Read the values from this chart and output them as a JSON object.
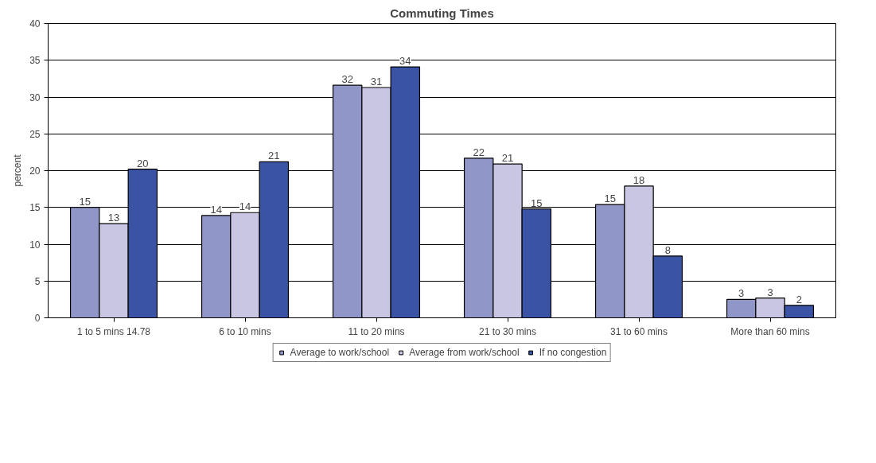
{
  "chart_data": {
    "type": "bar",
    "title": "Commuting Times",
    "ylabel": "percent",
    "categories": [
      "1 to 5 mins 14.78",
      "6 to 10 mins",
      "11 to 20 mins",
      "21 to 30 mins",
      "31 to 60 mins",
      "More than 60 mins"
    ],
    "series": [
      {
        "name": "Average to work/school",
        "color": "#9096c8",
        "values": [
          15,
          13.9,
          31.6,
          21.7,
          15.4,
          2.5
        ],
        "value_labels": [
          "15",
          "14",
          "32",
          "22",
          "15",
          "3"
        ]
      },
      {
        "name": "Average from work/school",
        "color": "#c8c6e2",
        "values": [
          12.8,
          14.3,
          31.3,
          20.9,
          17.9,
          2.7
        ],
        "value_labels": [
          "13",
          "14",
          "31",
          "21",
          "18",
          "3"
        ]
      },
      {
        "name": "If no congestion",
        "color": "#3a53a4",
        "values": [
          20.2,
          21.2,
          34.1,
          14.8,
          8.4,
          1.7
        ],
        "value_labels": [
          "20",
          "21",
          "34",
          "15",
          "8",
          "2"
        ]
      }
    ],
    "ylim": [
      0,
      40
    ],
    "yticks": [
      0,
      5,
      10,
      15,
      20,
      25,
      30,
      35,
      40
    ],
    "grid": "y",
    "legend": "bottom"
  }
}
